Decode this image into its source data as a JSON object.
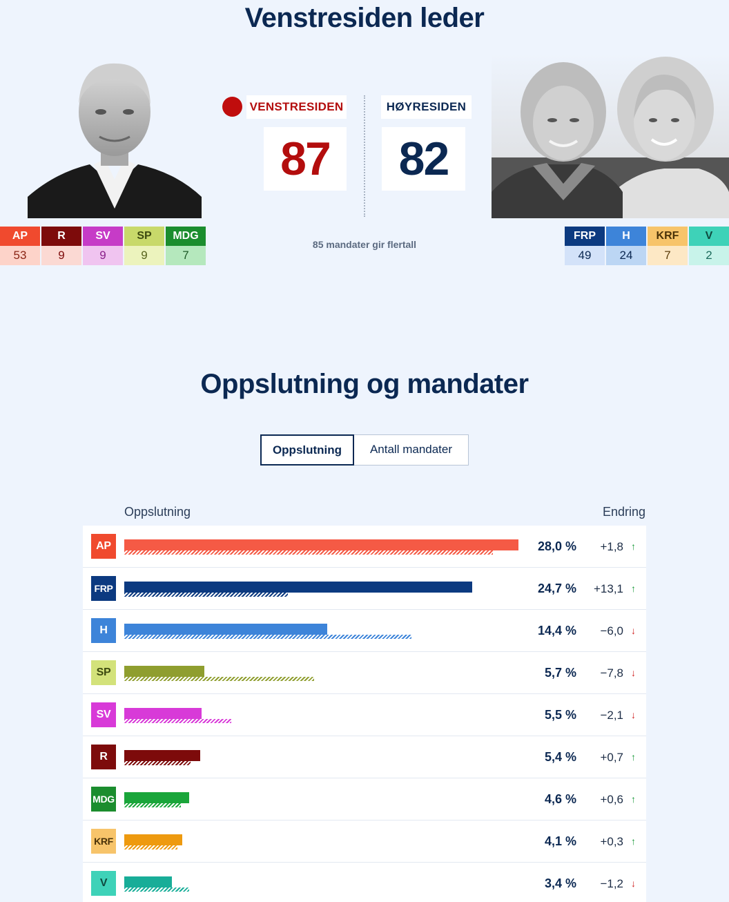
{
  "header": {
    "title": "Venstresiden leder"
  },
  "blocs": {
    "left": {
      "label": "VENSTRESIDEN",
      "seats": "87",
      "color": "#b30d0d"
    },
    "right": {
      "label": "HØYRESIDEN",
      "seats": "82",
      "color": "#0b2852"
    },
    "majority_note": "85 mandater gir flertall"
  },
  "seats_left": [
    {
      "abbr": "AP",
      "seats": "53",
      "color": "#f04a2e",
      "bg": "#fdd3c9",
      "text": "#8a2414"
    },
    {
      "abbr": "R",
      "seats": "9",
      "color": "#7d0b0b",
      "bg": "#fbd9d3",
      "text": "#7d0b0b"
    },
    {
      "abbr": "SV",
      "seats": "9",
      "color": "#c63bc7",
      "bg": "#f0c4f0",
      "text": "#8a1f8a"
    },
    {
      "abbr": "SP",
      "seats": "9",
      "color": "#c8d96a",
      "bg": "#ecf3bd",
      "text": "#56621c",
      "abbr_text": "#3d4a10"
    },
    {
      "abbr": "MDG",
      "seats": "7",
      "color": "#1b8d2e",
      "bg": "#b5e8bd",
      "text": "#1d5a27"
    }
  ],
  "seats_right": [
    {
      "abbr": "FRP",
      "seats": "49",
      "color": "#0c3a80",
      "bg": "#d3e2f9",
      "text": "#0b2852"
    },
    {
      "abbr": "H",
      "seats": "24",
      "color": "#3d84d9",
      "bg": "#bcd6f4",
      "text": "#0b2852"
    },
    {
      "abbr": "KRF",
      "seats": "7",
      "color": "#f7c46a",
      "bg": "#fde8c5",
      "text": "#5a3c0a",
      "abbr_text": "#4a3208"
    },
    {
      "abbr": "V",
      "seats": "2",
      "color": "#3ed2b8",
      "bg": "#c8f3ea",
      "text": "#1b6b5c",
      "abbr_text": "#0f4a3f"
    }
  ],
  "section": {
    "title": "Oppslutning og mandater"
  },
  "tabs": [
    {
      "label": "Oppslutning",
      "active": true
    },
    {
      "label": "Antall mandater",
      "active": false
    }
  ],
  "table_headers": {
    "left": "Oppslutning",
    "right": "Endring"
  },
  "chart_data": {
    "type": "bar",
    "orientation": "horizontal",
    "title": "",
    "xlim": [
      0,
      28
    ],
    "categories": [
      "AP",
      "FRP",
      "H",
      "SP",
      "SV",
      "R",
      "MDG",
      "KRF",
      "V"
    ],
    "series": [
      {
        "values": [
          28.0,
          24.7,
          14.4,
          5.7,
          5.5,
          5.4,
          4.6,
          4.1,
          3.4
        ]
      },
      {
        "values": [
          26.2,
          11.6,
          20.4,
          13.5,
          7.6,
          4.7,
          4.0,
          3.8,
          4.6
        ]
      }
    ],
    "rows": [
      {
        "abbr": "AP",
        "pct": "28,0 %",
        "change": "+1,8",
        "dir": "up",
        "value": 28.0,
        "prev": 26.2,
        "color": "#f55a45",
        "badge": "#f04a2e",
        "badge_text": "#ffffff"
      },
      {
        "abbr": "FRP",
        "pct": "24,7 %",
        "change": "+13,1",
        "dir": "up",
        "value": 24.7,
        "prev": 11.6,
        "color": "#0c3a80",
        "badge": "#0c3a80",
        "badge_text": "#ffffff"
      },
      {
        "abbr": "H",
        "pct": "14,4 %",
        "change": "−6,0",
        "dir": "down",
        "value": 14.4,
        "prev": 20.4,
        "color": "#3d84d9",
        "badge": "#3d84d9",
        "badge_text": "#ffffff"
      },
      {
        "abbr": "SP",
        "pct": "5,7 %",
        "change": "−7,8",
        "dir": "down",
        "value": 5.7,
        "prev": 13.5,
        "color": "#8f9e2f",
        "badge": "#d3e27a",
        "badge_text": "#3d4a10"
      },
      {
        "abbr": "SV",
        "pct": "5,5 %",
        "change": "−2,1",
        "dir": "down",
        "value": 5.5,
        "prev": 7.6,
        "color": "#d83ad8",
        "badge": "#d83ad8",
        "badge_text": "#ffffff"
      },
      {
        "abbr": "R",
        "pct": "5,4 %",
        "change": "+0,7",
        "dir": "up",
        "value": 5.4,
        "prev": 4.7,
        "color": "#7d0b0b",
        "badge": "#7d0b0b",
        "badge_text": "#ffffff"
      },
      {
        "abbr": "MDG",
        "pct": "4,6 %",
        "change": "+0,6",
        "dir": "up",
        "value": 4.6,
        "prev": 4.0,
        "color": "#1aa53a",
        "badge": "#1b8d2e",
        "badge_text": "#ffffff"
      },
      {
        "abbr": "KRF",
        "pct": "4,1 %",
        "change": "+0,3",
        "dir": "up",
        "value": 4.1,
        "prev": 3.8,
        "color": "#ee9a0f",
        "badge": "#f7c46a",
        "badge_text": "#4a3208"
      },
      {
        "abbr": "V",
        "pct": "3,4 %",
        "change": "−1,2",
        "dir": "down",
        "value": 3.4,
        "prev": 4.6,
        "color": "#18ad98",
        "badge": "#3ed2b8",
        "badge_text": "#0f4a3f"
      }
    ]
  }
}
